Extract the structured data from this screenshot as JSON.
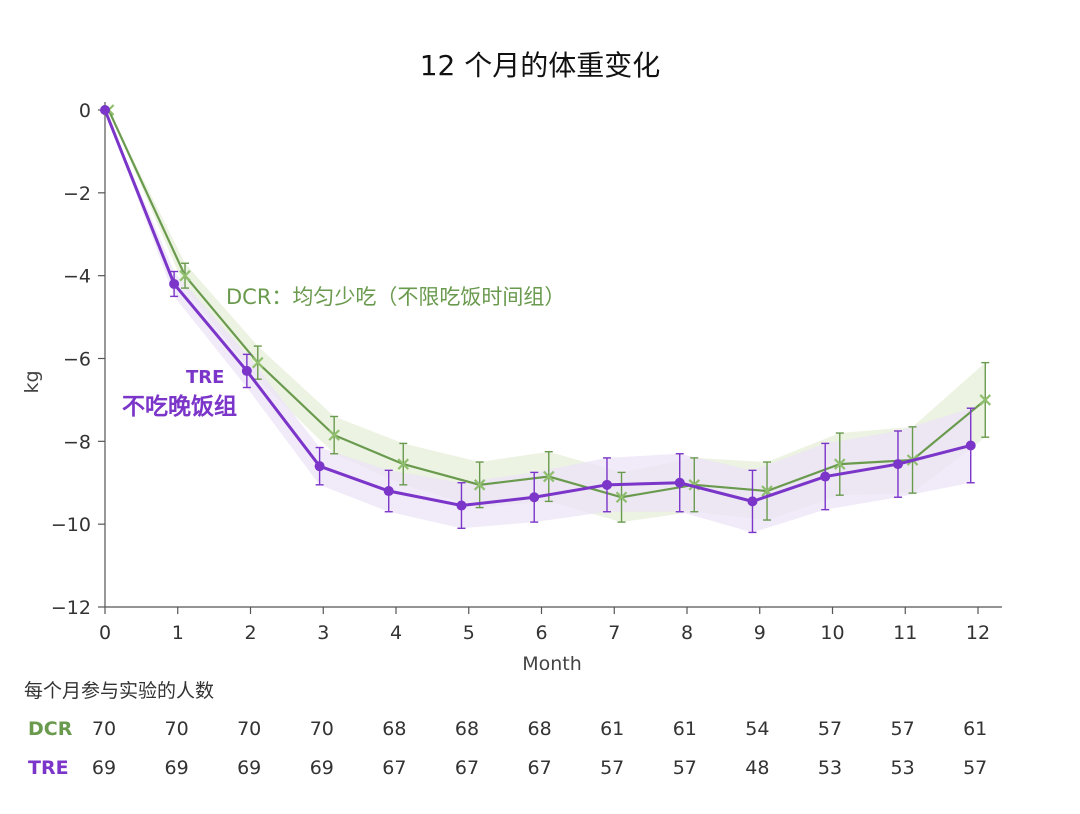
{
  "chart_data": {
    "type": "line",
    "title": "12 个月的体重变化",
    "xlabel": "Month",
    "ylabel": "kg",
    "xlim": [
      0,
      12
    ],
    "ylim": [
      -12,
      0
    ],
    "x_ticks": [
      0,
      1,
      2,
      3,
      4,
      5,
      6,
      7,
      8,
      9,
      10,
      11,
      12
    ],
    "y_ticks": [
      0,
      -2,
      -4,
      -6,
      -8,
      -10,
      -12
    ],
    "y_tick_labels": [
      "0",
      "−2",
      "−4",
      "−6",
      "−8",
      "−10",
      "−12"
    ],
    "grid": false,
    "series": [
      {
        "name": "DCR：均匀少吃（不限吃饭时间组）",
        "color": "#6a9a4e",
        "band_color": "#e6efd8",
        "marker": "x",
        "x": [
          0.05,
          1.1,
          2.1,
          3.15,
          4.1,
          5.15,
          6.1,
          7.1,
          8.1,
          9.1,
          10.1,
          11.1,
          12.1
        ],
        "y": [
          0,
          -4.0,
          -6.1,
          -7.85,
          -8.55,
          -9.05,
          -8.85,
          -9.35,
          -9.05,
          -9.2,
          -8.55,
          -8.45,
          -7.0
        ],
        "err": [
          0,
          0.3,
          0.4,
          0.45,
          0.5,
          0.55,
          0.6,
          0.6,
          0.65,
          0.7,
          0.75,
          0.8,
          0.9
        ]
      },
      {
        "name": "TRE 不吃晚饭组",
        "color": "#7b35c9",
        "band_color": "#ece3f7",
        "marker": "circle",
        "x": [
          0,
          0.95,
          1.95,
          2.95,
          3.9,
          4.9,
          5.9,
          6.9,
          7.9,
          8.9,
          9.9,
          10.9,
          11.9
        ],
        "y": [
          0,
          -4.2,
          -6.3,
          -8.6,
          -9.2,
          -9.55,
          -9.35,
          -9.05,
          -9.0,
          -9.45,
          -8.85,
          -8.55,
          -8.1
        ],
        "err": [
          0,
          0.3,
          0.4,
          0.45,
          0.5,
          0.55,
          0.6,
          0.65,
          0.7,
          0.75,
          0.8,
          0.8,
          0.9
        ]
      }
    ],
    "annotations": {
      "dcr_label": "DCR：均匀少吃（不限吃饭时间组）",
      "tre_label_top": "TRE",
      "tre_label_bottom": "不吃晚饭组"
    }
  },
  "counts_table": {
    "title": "每个月参与实验的人数",
    "rows": [
      {
        "label": "DCR",
        "color": "#6a9a4e",
        "values": [
          "70",
          "70",
          "70",
          "70",
          "68",
          "68",
          "68",
          "61",
          "61",
          "54",
          "57",
          "57",
          "61"
        ]
      },
      {
        "label": "TRE",
        "color": "#7b35c9",
        "values": [
          "69",
          "69",
          "69",
          "69",
          "67",
          "67",
          "67",
          "57",
          "57",
          "48",
          "53",
          "53",
          "57"
        ]
      }
    ]
  }
}
